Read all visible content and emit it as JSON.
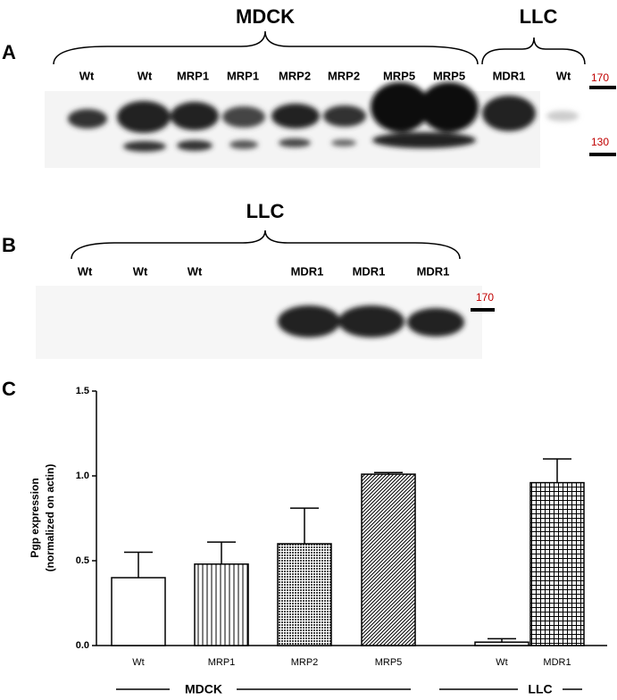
{
  "panel_a": {
    "letter": "A",
    "groups": [
      "MDCK",
      "LLC"
    ],
    "lanes": [
      "Wt",
      "Wt",
      "MRP1",
      "MRP1",
      "MRP2",
      "MRP2",
      "MRP5",
      "MRP5",
      "MDR1",
      "Wt"
    ],
    "markers": [
      170,
      130
    ]
  },
  "panel_b": {
    "letter": "B",
    "groups": [
      "LLC"
    ],
    "lanes": [
      "Wt",
      "Wt",
      "Wt",
      "MDR1",
      "MDR1",
      "MDR1"
    ],
    "markers": [
      170
    ]
  },
  "panel_c": {
    "letter": "C"
  },
  "chart_data": {
    "type": "bar",
    "ylabel": [
      "Pgp expression",
      "(normalized on actin)"
    ],
    "categories": [
      "Wt",
      "MRP1",
      "MRP2",
      "MRP5",
      "Wt",
      "MDR1"
    ],
    "values": [
      0.4,
      0.48,
      0.6,
      1.01,
      0.02,
      0.96
    ],
    "errors": [
      0.15,
      0.13,
      0.21,
      0.01,
      0.02,
      0.14
    ],
    "patterns": [
      "none",
      "vertical",
      "dots",
      "diagonal",
      "none",
      "grid"
    ],
    "groups": [
      "MDCK",
      "LLC"
    ],
    "ylim": [
      0,
      1.5
    ],
    "yticks": [
      {
        "value": 0,
        "label": "0.0"
      },
      {
        "value": 0.5,
        "label": "0.5"
      },
      {
        "value": 1,
        "label": "1.0"
      },
      {
        "value": 1.5,
        "label": "1.5"
      }
    ],
    "grid": false
  }
}
